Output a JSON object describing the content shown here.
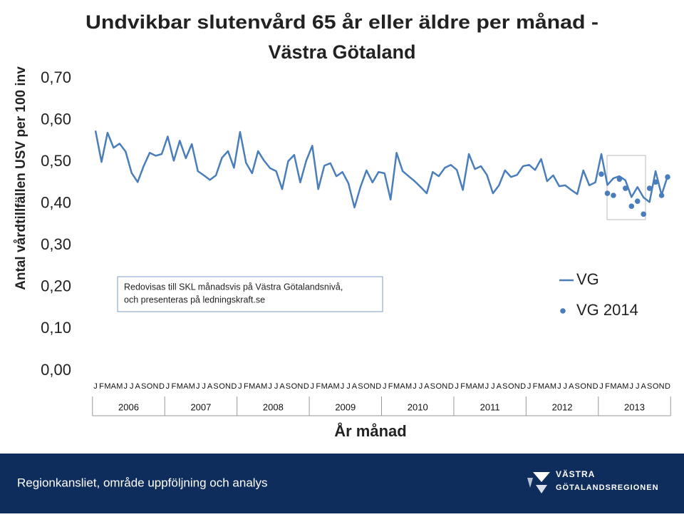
{
  "chart_data": {
    "type": "line",
    "title": [
      "Undvikbar slutenvård 65 år eller äldre per månad -",
      "Västra Götaland"
    ],
    "ylabel": "Antal vårdtillfällen USV per 100 inv",
    "xlabel": "År månad",
    "annotation": [
      "Redovisas till SKL månadsvis på Västra Götalandsnivå,",
      "och presenteras på ledningskraft.se"
    ],
    "categories": [
      "J",
      "F",
      "M",
      "A",
      "M",
      "J",
      "J",
      "A",
      "S",
      "O",
      "N",
      "D",
      "J",
      "F",
      "M",
      "A",
      "M",
      "J",
      "J",
      "A",
      "S",
      "O",
      "N",
      "D",
      "J",
      "F",
      "M",
      "A",
      "M",
      "J",
      "J",
      "A",
      "S",
      "O",
      "N",
      "D",
      "J",
      "F",
      "M",
      "A",
      "M",
      "J",
      "J",
      "A",
      "S",
      "O",
      "N",
      "D",
      "J",
      "F",
      "M",
      "A",
      "M",
      "J",
      "J",
      "A",
      "S",
      "O",
      "N",
      "D",
      "J",
      "F",
      "M",
      "A",
      "M",
      "J",
      "J",
      "A",
      "S",
      "O",
      "N",
      "D",
      "J",
      "F",
      "M",
      "A",
      "M",
      "J",
      "J",
      "A",
      "S",
      "O",
      "N",
      "D",
      "J",
      "F",
      "M",
      "A",
      "M",
      "J",
      "J",
      "A",
      "S",
      "O",
      "N",
      "D"
    ],
    "year_groups": [
      "2006",
      "2007",
      "2008",
      "2009",
      "2010",
      "2011",
      "2012",
      "2013"
    ],
    "ylim": [
      0,
      0.7
    ],
    "yticks": [
      {
        "value": 0,
        "label": "0,00"
      },
      {
        "value": 0.1,
        "label": "0,10"
      },
      {
        "value": 0.2,
        "label": "0,20"
      },
      {
        "value": 0.3,
        "label": "0,30"
      },
      {
        "value": 0.4,
        "label": "0,40"
      },
      {
        "value": 0.5,
        "label": "0,50"
      },
      {
        "value": 0.6,
        "label": "0,60"
      },
      {
        "value": 0.7,
        "label": "0,70"
      }
    ],
    "legend": "right",
    "series": [
      {
        "name": "VG",
        "mark": "line",
        "color": "#4a7ebb",
        "values": [
          0.575,
          0.5,
          0.57,
          0.534,
          0.544,
          0.525,
          0.474,
          0.452,
          0.49,
          0.522,
          0.515,
          0.519,
          0.561,
          0.503,
          0.551,
          0.509,
          0.543,
          0.478,
          0.468,
          0.457,
          0.468,
          0.51,
          0.526,
          0.486,
          0.572,
          0.498,
          0.473,
          0.526,
          0.503,
          0.485,
          0.478,
          0.435,
          0.502,
          0.517,
          0.451,
          0.503,
          0.539,
          0.435,
          0.491,
          0.497,
          0.466,
          0.476,
          0.449,
          0.391,
          0.44,
          0.48,
          0.451,
          0.476,
          0.473,
          0.41,
          0.522,
          0.478,
          0.466,
          0.454,
          0.44,
          0.425,
          0.476,
          0.466,
          0.486,
          0.493,
          0.481,
          0.433,
          0.519,
          0.483,
          0.49,
          0.469,
          0.425,
          0.444,
          0.48,
          0.464,
          0.469,
          0.49,
          0.493,
          0.481,
          0.507,
          0.454,
          0.468,
          0.442,
          0.444,
          0.433,
          0.423,
          0.48,
          0.444,
          0.451,
          0.519,
          0.445,
          0.461,
          0.466,
          0.456,
          0.416,
          0.44,
          0.415,
          0.404,
          0.478,
          0.421,
          0.466
        ]
      },
      {
        "name": "VG 2014",
        "mark": "marker",
        "color": "#4a7ebb",
        "values": [
          null,
          null,
          null,
          null,
          null,
          null,
          null,
          null,
          null,
          null,
          null,
          null,
          null,
          null,
          null,
          null,
          null,
          null,
          null,
          null,
          null,
          null,
          null,
          null,
          null,
          null,
          null,
          null,
          null,
          null,
          null,
          null,
          null,
          null,
          null,
          null,
          null,
          null,
          null,
          null,
          null,
          null,
          null,
          null,
          null,
          null,
          null,
          null,
          null,
          null,
          null,
          null,
          null,
          null,
          null,
          null,
          null,
          null,
          null,
          null,
          null,
          null,
          null,
          null,
          null,
          null,
          null,
          null,
          null,
          null,
          null,
          null,
          null,
          null,
          null,
          null,
          null,
          null,
          null,
          null,
          null,
          null,
          null,
          null,
          0.471,
          0.425,
          0.42,
          0.459,
          0.437,
          0.394,
          0.406,
          0.375,
          0.437,
          0.452,
          0.42,
          0.464
        ]
      }
    ]
  },
  "footer": {
    "text": "Regionkansliet, område uppföljning och analys",
    "logo": [
      "VÄSTRA",
      "GÖTALANDSREGIONEN"
    ]
  }
}
